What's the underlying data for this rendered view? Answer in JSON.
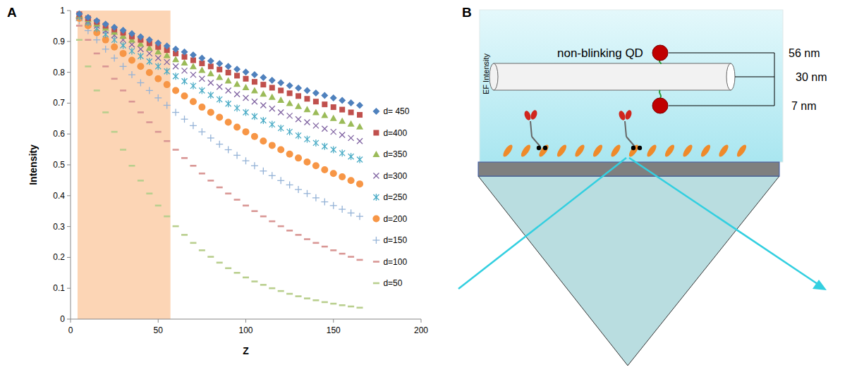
{
  "panels": [
    "A",
    "B"
  ],
  "chart_data": {
    "type": "scatter",
    "x_label": "Z",
    "y_label": "Intensity",
    "xlim": [
      0,
      200
    ],
    "xticks": [
      0,
      50,
      100,
      150,
      200
    ],
    "ylim": [
      0,
      1
    ],
    "yticks": [
      0,
      0.1,
      0.2,
      0.3,
      0.4,
      0.5,
      0.6,
      0.7,
      0.8,
      0.9,
      1
    ],
    "grid": false,
    "legend": "right",
    "shaded_range": [
      4,
      57
    ],
    "x": [
      5,
      10,
      15,
      20,
      25,
      30,
      35,
      40,
      45,
      50,
      55,
      60,
      65,
      70,
      75,
      80,
      85,
      90,
      95,
      100,
      105,
      110,
      115,
      120,
      125,
      130,
      135,
      140,
      145,
      150,
      155,
      160,
      165
    ],
    "series": [
      {
        "name": "d= 450",
        "color": "#4f81bd",
        "marker": "diamond",
        "values": [
          0.989,
          0.978,
          0.967,
          0.956,
          0.946,
          0.936,
          0.925,
          0.915,
          0.905,
          0.895,
          0.885,
          0.875,
          0.866,
          0.856,
          0.846,
          0.837,
          0.828,
          0.819,
          0.81,
          0.801,
          0.792,
          0.783,
          0.774,
          0.766,
          0.757,
          0.749,
          0.741,
          0.733,
          0.725,
          0.717,
          0.709,
          0.701,
          0.693
        ]
      },
      {
        "name": "d=400",
        "color": "#c0504d",
        "marker": "square",
        "values": [
          0.988,
          0.975,
          0.963,
          0.951,
          0.939,
          0.928,
          0.916,
          0.905,
          0.894,
          0.882,
          0.872,
          0.861,
          0.85,
          0.839,
          0.829,
          0.819,
          0.809,
          0.799,
          0.789,
          0.779,
          0.769,
          0.76,
          0.75,
          0.741,
          0.732,
          0.723,
          0.714,
          0.705,
          0.696,
          0.687,
          0.679,
          0.67,
          0.662
        ]
      },
      {
        "name": "d=350",
        "color": "#9bbb59",
        "marker": "triangle",
        "values": [
          0.986,
          0.972,
          0.958,
          0.944,
          0.931,
          0.918,
          0.905,
          0.892,
          0.879,
          0.867,
          0.855,
          0.842,
          0.831,
          0.819,
          0.807,
          0.796,
          0.784,
          0.773,
          0.762,
          0.751,
          0.741,
          0.73,
          0.72,
          0.71,
          0.7,
          0.69,
          0.68,
          0.67,
          0.661,
          0.651,
          0.642,
          0.633,
          0.624
        ]
      },
      {
        "name": "d=300",
        "color": "#8064a2",
        "marker": "x",
        "values": [
          0.983,
          0.967,
          0.951,
          0.935,
          0.92,
          0.905,
          0.89,
          0.875,
          0.861,
          0.846,
          0.833,
          0.819,
          0.805,
          0.792,
          0.779,
          0.766,
          0.753,
          0.741,
          0.729,
          0.717,
          0.705,
          0.693,
          0.682,
          0.67,
          0.659,
          0.648,
          0.638,
          0.627,
          0.617,
          0.607,
          0.597,
          0.587,
          0.577
        ]
      },
      {
        "name": "d=250",
        "color": "#4bacc6",
        "marker": "star",
        "values": [
          0.98,
          0.961,
          0.942,
          0.923,
          0.905,
          0.887,
          0.869,
          0.852,
          0.835,
          0.819,
          0.803,
          0.787,
          0.771,
          0.756,
          0.741,
          0.726,
          0.712,
          0.698,
          0.684,
          0.67,
          0.657,
          0.644,
          0.631,
          0.619,
          0.607,
          0.595,
          0.583,
          0.571,
          0.56,
          0.549,
          0.538,
          0.527,
          0.517
        ]
      },
      {
        "name": "d=200",
        "color": "#f79646",
        "marker": "circle",
        "values": [
          0.975,
          0.951,
          0.928,
          0.905,
          0.882,
          0.861,
          0.839,
          0.819,
          0.799,
          0.779,
          0.76,
          0.741,
          0.723,
          0.705,
          0.687,
          0.67,
          0.654,
          0.638,
          0.622,
          0.607,
          0.592,
          0.577,
          0.563,
          0.549,
          0.535,
          0.522,
          0.509,
          0.497,
          0.484,
          0.472,
          0.461,
          0.449,
          0.438
        ]
      },
      {
        "name": "d=150",
        "color": "#95b3d7",
        "marker": "plus",
        "values": [
          0.967,
          0.935,
          0.905,
          0.875,
          0.846,
          0.819,
          0.792,
          0.766,
          0.741,
          0.717,
          0.693,
          0.67,
          0.648,
          0.627,
          0.607,
          0.587,
          0.567,
          0.549,
          0.531,
          0.513,
          0.497,
          0.48,
          0.465,
          0.449,
          0.435,
          0.42,
          0.407,
          0.393,
          0.38,
          0.368,
          0.356,
          0.344,
          0.333
        ]
      },
      {
        "name": "d=100",
        "color": "#d99795",
        "marker": "dash",
        "values": [
          0.951,
          0.905,
          0.861,
          0.819,
          0.779,
          0.741,
          0.705,
          0.67,
          0.638,
          0.607,
          0.577,
          0.549,
          0.522,
          0.497,
          0.472,
          0.449,
          0.427,
          0.407,
          0.387,
          0.368,
          0.35,
          0.333,
          0.317,
          0.301,
          0.287,
          0.273,
          0.259,
          0.247,
          0.235,
          0.223,
          0.212,
          0.202,
          0.192
        ]
      },
      {
        "name": "d=50",
        "color": "#b9cf8e",
        "marker": "dash",
        "values": [
          0.905,
          0.819,
          0.741,
          0.67,
          0.607,
          0.549,
          0.497,
          0.449,
          0.407,
          0.368,
          0.333,
          0.301,
          0.273,
          0.247,
          0.223,
          0.202,
          0.183,
          0.165,
          0.15,
          0.135,
          0.122,
          0.111,
          0.1,
          0.091,
          0.082,
          0.074,
          0.067,
          0.061,
          0.055,
          0.05,
          0.045,
          0.041,
          0.037
        ]
      }
    ]
  },
  "diagram": {
    "axis_label": "EF Intensity",
    "label": "non-blinking QD",
    "dimensions": [
      "56 nm",
      "30 nm",
      "7 nm"
    ]
  }
}
